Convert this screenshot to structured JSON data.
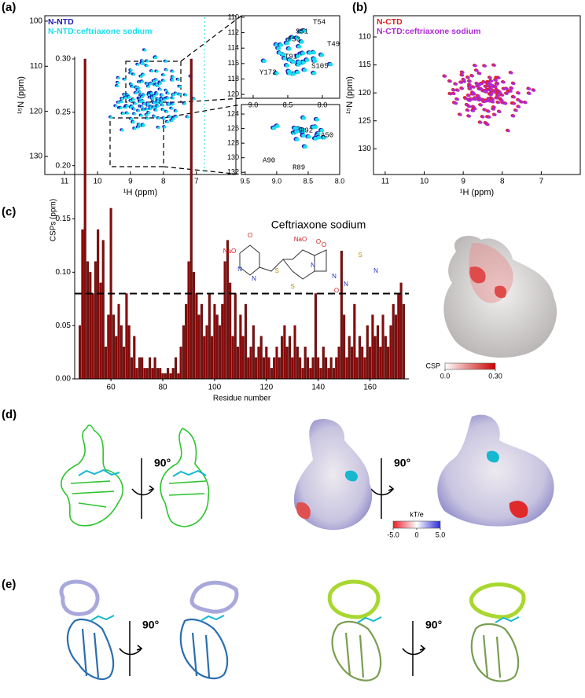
{
  "panel_labels": [
    "(a)",
    "(b)",
    "(c)",
    "(d)",
    "(e)"
  ],
  "rotation_labels": [
    "90°",
    "90°",
    "90°",
    "90°"
  ],
  "molecule": {
    "name": "Ceftriaxone sodium",
    "atoms": [
      "NaO",
      "O",
      "N",
      "N",
      "S",
      "NaO",
      "O",
      "S",
      "N",
      "O",
      "N",
      "O",
      "S",
      "N",
      "N"
    ]
  },
  "chart_data": [
    {
      "type": "scatter",
      "xlabel": "¹H (ppm)",
      "ylabel": "¹⁵N (ppm)",
      "xlim": [
        11.6,
        5.8
      ],
      "xticks": [
        11,
        10,
        9,
        8,
        7
      ],
      "ylim": [
        134,
        98.8
      ],
      "yticks": [
        100,
        110,
        120,
        130
      ],
      "series": [
        {
          "name": "N-NTD",
          "color": "#1c1cb0"
        },
        {
          "name": "N-NTD:ceftriaxone sodium",
          "color": "#19dff0"
        }
      ]
    },
    {
      "type": "scatter",
      "xlim": [
        9.17,
        7.75
      ],
      "xticks": [
        {
          "value": 9,
          "label": "9.0"
        },
        8.5,
        {
          "value": 8,
          "label": "8.0"
        }
      ],
      "ylim": [
        120.5,
        109.8
      ],
      "yticks": [
        110,
        112,
        114,
        116,
        118,
        120
      ],
      "annotations": [
        "T54",
        "S51",
        "F53",
        "T49",
        "T91",
        "S105",
        "Y172"
      ]
    },
    {
      "type": "scatter",
      "xlim": [
        9.56,
        8.0
      ],
      "xticks": [
        9.5,
        {
          "value": 9,
          "label": "9.0"
        },
        8.5,
        {
          "value": 8,
          "label": "8.0"
        }
      ],
      "ylim": [
        132.3,
        122.7
      ],
      "yticks": [
        124,
        126,
        128,
        130,
        132
      ],
      "annotations": [
        "R92",
        "A50",
        "A90",
        "R89"
      ]
    },
    {
      "type": "scatter",
      "xlabel": "¹H (ppm)",
      "ylabel": "¹⁵N (ppm)",
      "xlim": [
        11.3,
        6.0
      ],
      "xticks": [
        11,
        10,
        9,
        8,
        7
      ],
      "ylim": [
        134.6,
        106.2
      ],
      "yticks": [
        110,
        115,
        120,
        125,
        130
      ],
      "series": [
        {
          "name": "N-CTD",
          "color": "#e02020"
        },
        {
          "name": "N-CTD:ceftriaxone sodium",
          "color": "#b02ad8"
        }
      ]
    },
    {
      "type": "bar",
      "xlabel": "Residue number",
      "ylabel": "CSPs (ppm)",
      "color": "#8b0a0a",
      "threshold": 0.08,
      "xlim": [
        46,
        175
      ],
      "xticks": [
        60,
        80,
        100,
        120,
        140,
        160
      ],
      "ylim": [
        0,
        0.3
      ],
      "yticks": [
        {
          "value": 0,
          "label": "0.00"
        },
        0.05,
        {
          "value": 0.1,
          "label": "0.10"
        },
        0.15,
        {
          "value": 0.2,
          "label": "0.20"
        },
        0.25,
        {
          "value": 0.3,
          "label": "0.30"
        }
      ],
      "x": [
        48,
        49,
        50,
        51,
        52,
        53,
        54,
        55,
        56,
        57,
        58,
        59,
        60,
        61,
        62,
        63,
        64,
        65,
        66,
        67,
        68,
        69,
        70,
        71,
        72,
        73,
        74,
        75,
        76,
        77,
        78,
        79,
        80,
        81,
        82,
        83,
        84,
        85,
        86,
        87,
        88,
        89,
        90,
        91,
        92,
        93,
        94,
        95,
        96,
        97,
        98,
        99,
        100,
        101,
        102,
        103,
        104,
        105,
        106,
        107,
        108,
        109,
        110,
        111,
        112,
        113,
        114,
        115,
        116,
        117,
        118,
        119,
        120,
        121,
        122,
        123,
        124,
        125,
        126,
        127,
        128,
        129,
        130,
        131,
        132,
        133,
        134,
        135,
        136,
        137,
        138,
        139,
        140,
        141,
        142,
        143,
        144,
        145,
        146,
        147,
        148,
        149,
        150,
        151,
        152,
        153,
        154,
        155,
        156,
        157,
        158,
        159,
        160,
        161,
        162,
        163,
        164,
        165,
        166,
        167,
        168,
        169,
        170,
        171,
        172,
        173
      ],
      "values": [
        0.05,
        0.14,
        0.3,
        0.11,
        0.1,
        0.08,
        0.11,
        0.14,
        0.09,
        0.13,
        0.03,
        0.06,
        0.16,
        0.06,
        0.04,
        0.07,
        0.05,
        0.03,
        0.08,
        0.05,
        0.02,
        0.04,
        0.01,
        0.02,
        0.02,
        0.01,
        0.01,
        0.02,
        0.01,
        0.02,
        0.01,
        0.01,
        0.005,
        0.005,
        0.01,
        0.005,
        0.01,
        0.02,
        0.005,
        0.03,
        0.05,
        0.07,
        0.11,
        0.3,
        0.1,
        0.08,
        0.06,
        0.07,
        0.04,
        0.05,
        0.08,
        0.04,
        0.07,
        0.06,
        0.05,
        0.07,
        0.11,
        0.13,
        0.09,
        0.04,
        0.08,
        0.03,
        0.06,
        0.04,
        0.07,
        0.02,
        0.03,
        0.05,
        0.02,
        0.03,
        0.04,
        0.02,
        0.03,
        0.02,
        0.01,
        0.02,
        0.03,
        0.02,
        0.04,
        0.05,
        0.03,
        0.04,
        0.02,
        0.05,
        0.03,
        0.02,
        0.01,
        0.03,
        0.02,
        0.01,
        0.02,
        0.08,
        0.02,
        0.01,
        0.03,
        0.02,
        0.01,
        0.02,
        0.01,
        0.02,
        0.03,
        0.12,
        0.06,
        0.02,
        0.04,
        0.03,
        0.07,
        0.02,
        0.04,
        0.03,
        0.02,
        0.05,
        0.03,
        0.06,
        0.04,
        0.05,
        0.03,
        0.06,
        0.04,
        0.03,
        0.05,
        0.07,
        0.06,
        0.08,
        0.09,
        0.07
      ]
    },
    {
      "type": "colorbar",
      "label": "CSP",
      "colors": [
        "#ffffff",
        "#cc0000"
      ],
      "lim": [
        0,
        0.3
      ],
      "ticks": [
        {
          "value": 0,
          "label": "0.0"
        },
        {
          "value": 0.3,
          "label": "0.30"
        }
      ]
    },
    {
      "type": "colorbar",
      "label": "kT/e",
      "colors": [
        "#e8202a",
        "#ffffff",
        "#2c2cd8"
      ],
      "lim": [
        -5,
        5
      ],
      "ticks": [
        {
          "value": -5,
          "label": "-5.0"
        },
        0,
        {
          "value": 5,
          "label": "5.0"
        }
      ]
    }
  ]
}
